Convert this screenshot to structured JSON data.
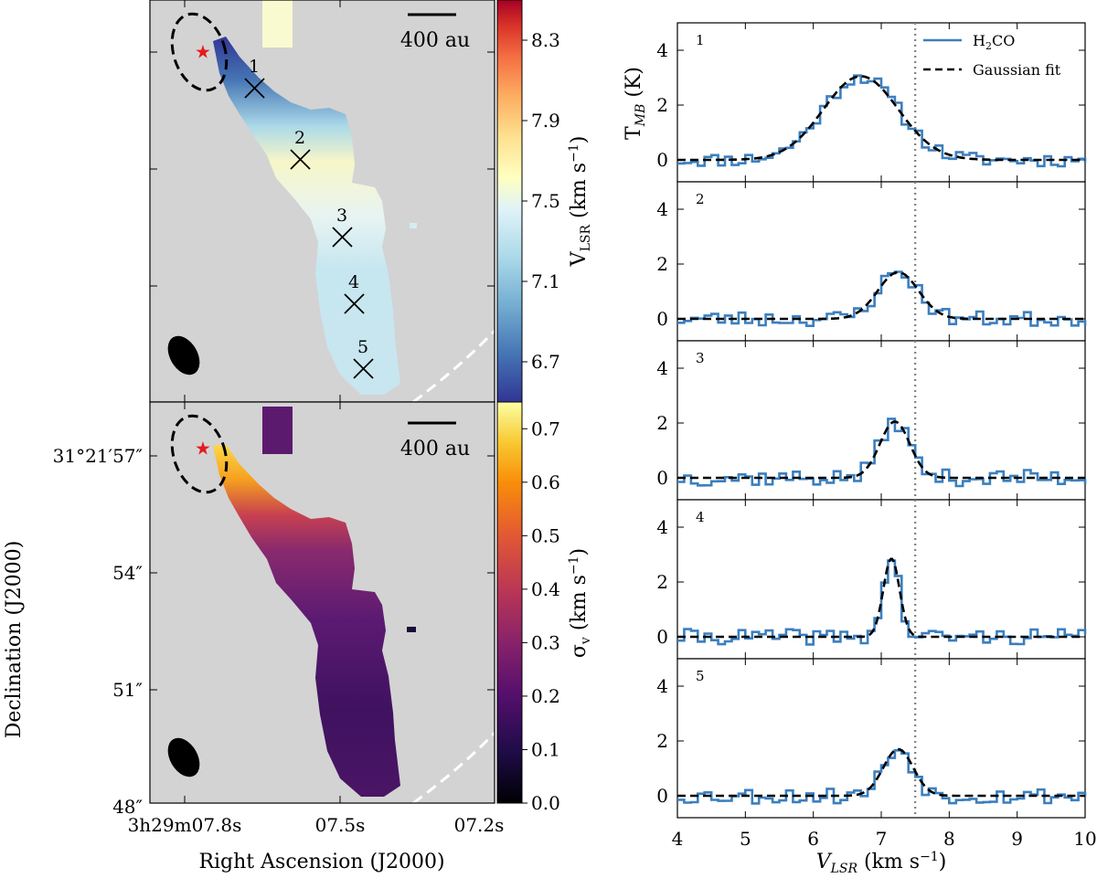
{
  "figure": {
    "description": "Left: H2CO velocity (VLSR) and velocity dispersion maps with spectra extraction positions 1-5; Right: H2CO spectra with Gaussian fits at positions 1-5."
  },
  "chart_data": [
    {
      "type": "heatmap",
      "id": "vlsr-map",
      "colorbar_label": "V_LSR (km s^-1)",
      "colorbar_ticks": [
        "8.3",
        "7.9",
        "7.5",
        "7.1",
        "6.7"
      ],
      "colorbar_tick_values": [
        8.3,
        7.9,
        7.5,
        7.1,
        6.7
      ],
      "colorbar_range": [
        6.5,
        8.5
      ],
      "colormap": "RdYlBu_r",
      "scale_bar": "400 au",
      "positions": [
        {
          "label": "1",
          "vlsr": 6.65
        },
        {
          "label": "2",
          "vlsr": 7.25
        },
        {
          "label": "3",
          "vlsr": 7.15
        },
        {
          "label": "4",
          "vlsr": 7.15
        },
        {
          "label": "5",
          "vlsr": 7.2
        }
      ]
    },
    {
      "type": "heatmap",
      "id": "sigma-map",
      "colorbar_label": "σ_v (km s^-1)",
      "colorbar_ticks": [
        "0.7",
        "0.6",
        "0.5",
        "0.4",
        "0.3",
        "0.2",
        "0.1",
        "0.0"
      ],
      "colorbar_tick_values": [
        0.7,
        0.6,
        0.5,
        0.4,
        0.3,
        0.2,
        0.1,
        0.0
      ],
      "colorbar_range": [
        0.0,
        0.75
      ],
      "colormap": "inferno",
      "scale_bar": "400 au",
      "xlabel": "Right Ascension (J2000)",
      "ylabel": "Declination (J2000)",
      "xticks": [
        "3h29m07.8s",
        "07.5s",
        "07.2s"
      ],
      "yticks": [
        "31°21′57″",
        "54″",
        "51″",
        "48″"
      ]
    },
    {
      "type": "line",
      "id": "spectra",
      "xlabel": "V_LSR (km s^-1)",
      "ylabel": "T_MB (K)",
      "xlim": [
        4,
        10
      ],
      "ylim": [
        -0.8,
        5
      ],
      "xticks": [
        4,
        5,
        6,
        7,
        8,
        9,
        10
      ],
      "yticks": [
        0,
        2,
        4
      ],
      "reference_line_x": 7.5,
      "legend": [
        "H2CO",
        "Gaussian fit"
      ],
      "series": [
        {
          "name": "1",
          "gauss": {
            "amp": 3.05,
            "center": 6.7,
            "sigma": 0.55
          },
          "noise": 0.25,
          "seed": 11
        },
        {
          "name": "2",
          "gauss": {
            "amp": 1.7,
            "center": 7.25,
            "sigma": 0.3
          },
          "noise": 0.28,
          "seed": 23
        },
        {
          "name": "3",
          "gauss": {
            "amp": 2.05,
            "center": 7.2,
            "sigma": 0.22
          },
          "noise": 0.3,
          "seed": 37
        },
        {
          "name": "4",
          "gauss": {
            "amp": 2.85,
            "center": 7.15,
            "sigma": 0.12
          },
          "noise": 0.28,
          "seed": 41
        },
        {
          "name": "5",
          "gauss": {
            "amp": 1.7,
            "center": 7.25,
            "sigma": 0.22
          },
          "noise": 0.3,
          "seed": 53
        }
      ]
    }
  ],
  "colors": {
    "map_background": "#d3d3d3",
    "spectrum_line": "#3b7fbf",
    "fit_line": "#000000",
    "source_star": "#e41a1c"
  },
  "text": {
    "legend_h2co_main": "H",
    "legend_h2co_sub": "2",
    "legend_h2co_tail": "CO",
    "legend_fit": "Gaussian fit"
  }
}
